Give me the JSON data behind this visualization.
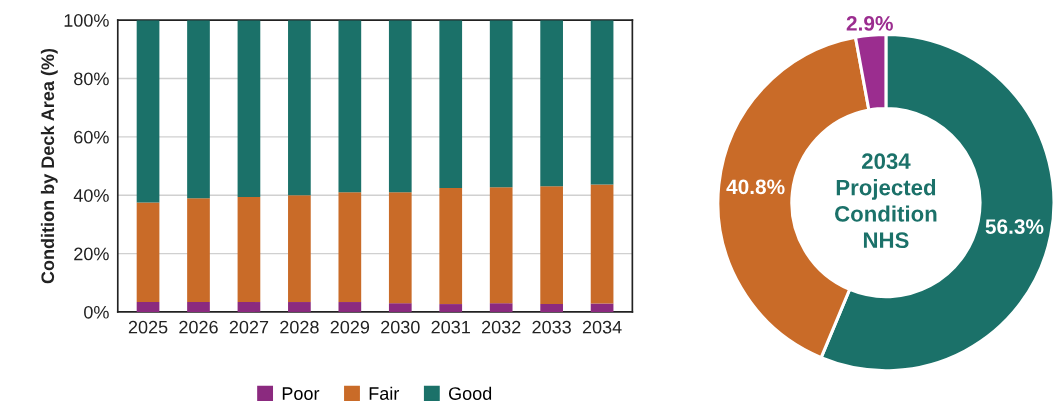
{
  "chart_data": [
    {
      "type": "bar",
      "stacked": true,
      "ylabel": "Condition by Deck Area (%)",
      "categories": [
        "2025",
        "2026",
        "2027",
        "2028",
        "2029",
        "2030",
        "2031",
        "2032",
        "2033",
        "2034"
      ],
      "series": [
        {
          "name": "Poor",
          "color": "#8b2a7f",
          "values": [
            3.4,
            3.4,
            3.4,
            3.4,
            3.4,
            3.0,
            2.7,
            3.0,
            2.7,
            2.9
          ]
        },
        {
          "name": "Fair",
          "color": "#c96b28",
          "values": [
            34.1,
            35.6,
            36.0,
            36.6,
            37.6,
            38.0,
            39.8,
            39.7,
            40.4,
            40.8
          ]
        },
        {
          "name": "Good",
          "color": "#1b7169",
          "values": [
            62.5,
            61.0,
            60.6,
            60.0,
            59.0,
            59.0,
            57.5,
            57.3,
            56.9,
            56.3
          ]
        }
      ],
      "ylim": [
        0,
        100
      ],
      "yticks": [
        {
          "value": 0,
          "label": "0%"
        },
        {
          "value": 20,
          "label": "20%"
        },
        {
          "value": 40,
          "label": "40%"
        },
        {
          "value": 60,
          "label": "60%"
        },
        {
          "value": 80,
          "label": "80%"
        },
        {
          "value": 100,
          "label": "100%"
        }
      ],
      "grid": "y",
      "legend": "bottom"
    },
    {
      "type": "donut",
      "title": "2034 Projected Condition NHS",
      "categories": [
        null,
        null,
        null
      ],
      "values": [
        56.3,
        40.8,
        2.9
      ],
      "colors": [
        "#1b7169",
        "#c96b28",
        "#9b2d8f"
      ],
      "value_labels": [
        "56.3%",
        "40.8%",
        "2.9%"
      ]
    }
  ]
}
